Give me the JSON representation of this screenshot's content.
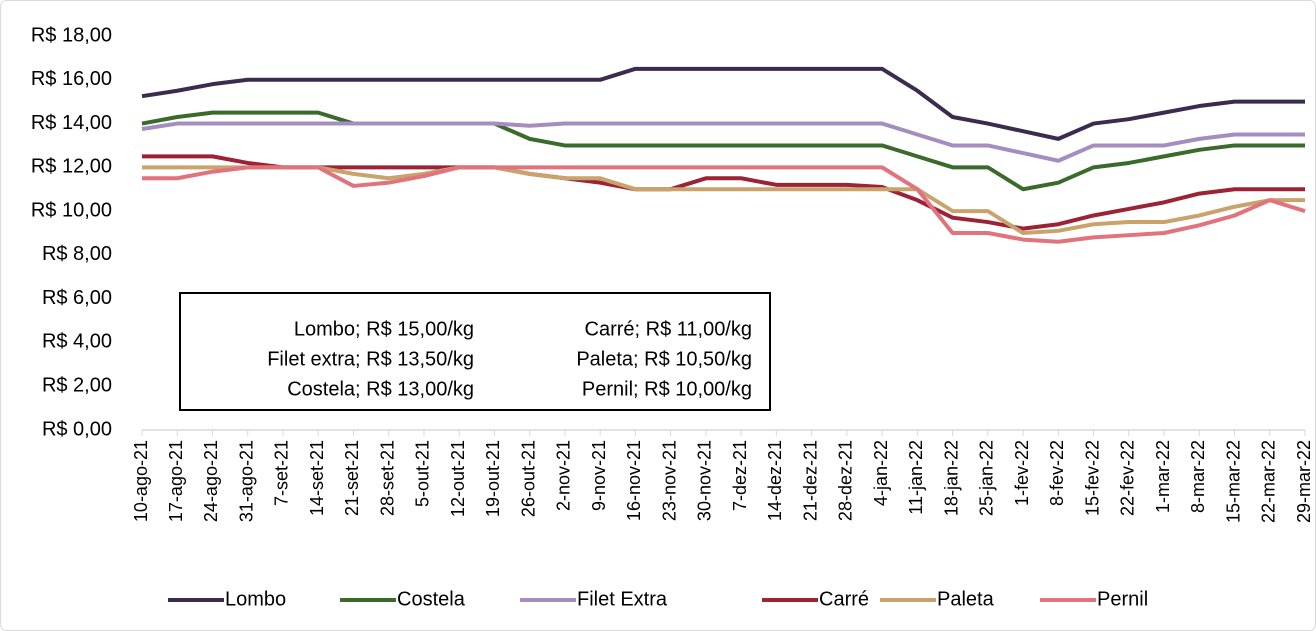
{
  "chart_data": {
    "type": "line",
    "categories": [
      "10-ago-21",
      "17-ago-21",
      "24-ago-21",
      "31-ago-21",
      "7-set-21",
      "14-set-21",
      "21-set-21",
      "28-set-21",
      "5-out-21",
      "12-out-21",
      "19-out-21",
      "26-out-21",
      "2-nov-21",
      "9-nov-21",
      "16-nov-21",
      "23-nov-21",
      "30-nov-21",
      "7-dez-21",
      "14-dez-21",
      "21-dez-21",
      "28-dez-21",
      "4-jan-22",
      "11-jan-22",
      "18-jan-22",
      "25-jan-22",
      "1-fev-22",
      "8-fev-22",
      "15-fev-22",
      "22-fev-22",
      "1-mar-22",
      "8-mar-22",
      "15-mar-22",
      "22-mar-22",
      "29-mar-22"
    ],
    "series": [
      {
        "name": "Lombo",
        "color": "#3b2b4f",
        "values": [
          15.25,
          15.5,
          15.8,
          16,
          16,
          16,
          16,
          16,
          16,
          16,
          16,
          16,
          16,
          16,
          16.5,
          16.5,
          16.5,
          16.5,
          16.5,
          16.5,
          16.5,
          16.5,
          15.5,
          14.3,
          14,
          13.65,
          13.3,
          14,
          14.2,
          14.5,
          14.8,
          15,
          15,
          15
        ]
      },
      {
        "name": "Costela",
        "color": "#3a6b2a",
        "values": [
          14,
          14.3,
          14.5,
          14.5,
          14.5,
          14.5,
          14,
          14,
          14,
          14,
          14,
          13.3,
          13,
          13,
          13,
          13,
          13,
          13,
          13,
          13,
          13,
          13,
          12.5,
          12,
          12,
          11,
          11.3,
          12,
          12.2,
          12.5,
          12.8,
          13,
          13,
          13
        ]
      },
      {
        "name": "Filet Extra",
        "color": "#a58dc2",
        "values": [
          13.75,
          14,
          14,
          14,
          14,
          14,
          14,
          14,
          14,
          14,
          14,
          13.9,
          14,
          14,
          14,
          14,
          14,
          14,
          14,
          14,
          14,
          14,
          13.5,
          13,
          13,
          12.65,
          12.3,
          13,
          13,
          13,
          13.3,
          13.5,
          13.5,
          13.5
        ]
      },
      {
        "name": "Carré",
        "color": "#9b2335",
        "values": [
          12.5,
          12.5,
          12.5,
          12.2,
          12,
          12,
          12,
          12,
          12,
          12,
          12,
          11.7,
          11.5,
          11.3,
          11,
          11,
          11.5,
          11.5,
          11.2,
          11.2,
          11.2,
          11.1,
          10.5,
          9.7,
          9.5,
          9.2,
          9.4,
          9.8,
          10.1,
          10.4,
          10.8,
          11,
          11,
          11
        ]
      },
      {
        "name": "Paleta",
        "color": "#c9a26c",
        "values": [
          12,
          12,
          12,
          12,
          12,
          12,
          11.7,
          11.5,
          11.7,
          12,
          12,
          11.7,
          11.5,
          11.5,
          11,
          11,
          11,
          11,
          11,
          11,
          11,
          11,
          11,
          10,
          10,
          9,
          9.1,
          9.4,
          9.5,
          9.5,
          9.8,
          10.2,
          10.5,
          10.5
        ]
      },
      {
        "name": "Pernil",
        "color": "#e0737b",
        "values": [
          11.5,
          11.5,
          11.8,
          12,
          12,
          12,
          11.15,
          11.3,
          11.6,
          12,
          12,
          12,
          12,
          12,
          12,
          12,
          12,
          12,
          12,
          12,
          12,
          12,
          11,
          9,
          9,
          8.7,
          8.6,
          8.8,
          8.9,
          9,
          9.35,
          9.8,
          10.5,
          10
        ]
      }
    ],
    "ylim": [
      0,
      18
    ],
    "yticks": [
      {
        "value": 0,
        "label": "R$ 0,00"
      },
      {
        "value": 2,
        "label": "R$ 2,00"
      },
      {
        "value": 4,
        "label": "R$ 4,00"
      },
      {
        "value": 6,
        "label": "R$ 6,00"
      },
      {
        "value": 8,
        "label": "R$ 8,00"
      },
      {
        "value": 10,
        "label": "R$ 10,00"
      },
      {
        "value": 12,
        "label": "R$ 12,00"
      },
      {
        "value": 14,
        "label": "R$ 14,00"
      },
      {
        "value": 16,
        "label": "R$ 16,00"
      },
      {
        "value": 18,
        "label": "R$ 18,00"
      }
    ],
    "annotations": [
      "Lombo; R$ 15,00/kg",
      "Filet extra; R$ 13,50/kg",
      "Costela; R$ 13,00/kg",
      "Carré; R$ 11,00/kg",
      "Paleta; R$ 10,50/kg",
      "Pernil; R$ 10,00/kg"
    ],
    "legend": "bottom"
  }
}
